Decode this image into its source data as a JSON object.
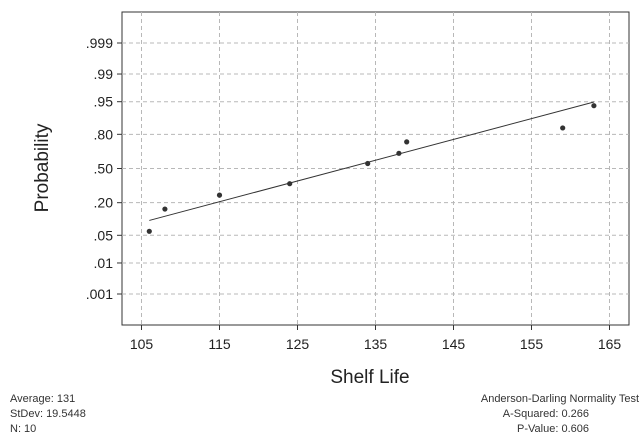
{
  "chart_data": {
    "type": "scatter",
    "title": "",
    "xlabel": "Shelf Life",
    "ylabel": "Probability",
    "x_ticks": [
      105,
      115,
      125,
      135,
      145,
      155,
      165
    ],
    "y_ticks": [
      {
        "label": ".999",
        "p": 0.999
      },
      {
        "label": ".99",
        "p": 0.99
      },
      {
        "label": ".95",
        "p": 0.95
      },
      {
        "label": ".80",
        "p": 0.8
      },
      {
        "label": ".50",
        "p": 0.5
      },
      {
        "label": ".20",
        "p": 0.2
      },
      {
        "label": ".05",
        "p": 0.05
      },
      {
        "label": ".01",
        "p": 0.01
      },
      {
        "label": ".001",
        "p": 0.001
      }
    ],
    "xlim": [
      102.5,
      167.5
    ],
    "y_scale": "normal-probability",
    "grid": true,
    "points": [
      {
        "x": 106,
        "p": 0.061
      },
      {
        "x": 108,
        "p": 0.159
      },
      {
        "x": 115,
        "p": 0.256
      },
      {
        "x": 124,
        "p": 0.354
      },
      {
        "x": 134,
        "p": 0.549
      },
      {
        "x": 138,
        "p": 0.646
      },
      {
        "x": 139,
        "p": 0.744
      },
      {
        "x": 159,
        "p": 0.841
      },
      {
        "x": 163,
        "p": 0.939
      }
    ],
    "fit_line": {
      "mean": 131,
      "stdev": 19.5448
    }
  },
  "stats": {
    "average": "Average: 131",
    "stdev": "StDev: 19.5448",
    "n": "N: 10",
    "test_title": "Anderson-Darling Normality Test",
    "a_squared": "A-Squared: 0.266",
    "p_value": "P-Value:   0.606"
  }
}
